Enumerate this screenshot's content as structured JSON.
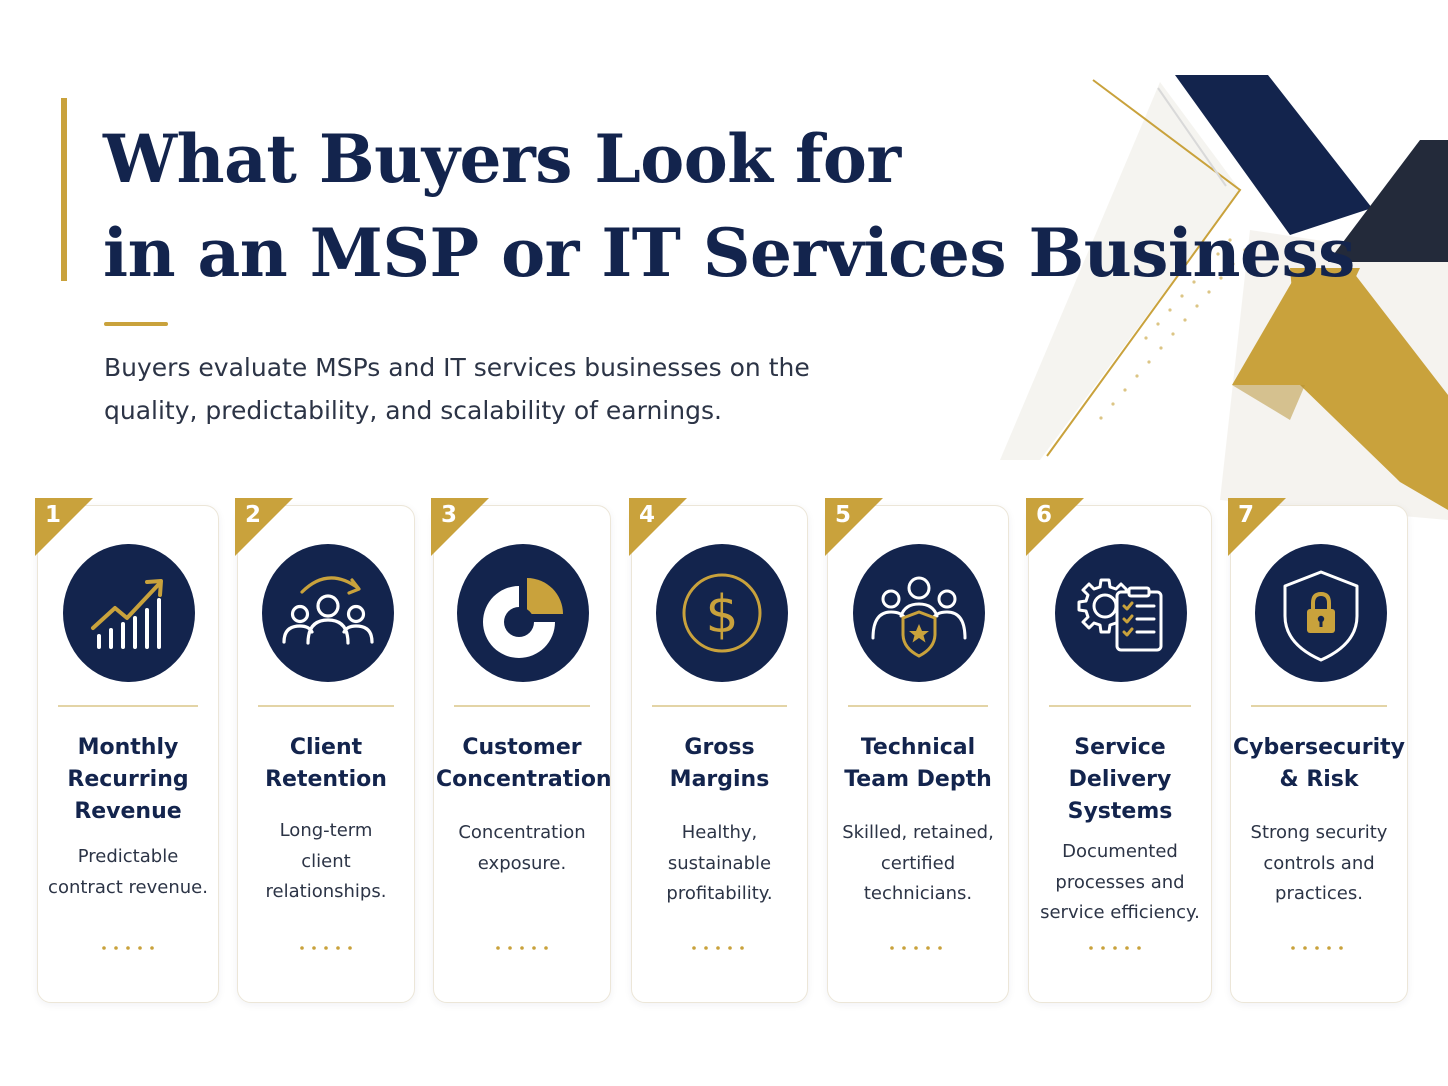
{
  "header": {
    "title_lines": [
      "What Buyers Look for",
      "in an MSP or IT Services Business"
    ],
    "subtitle_lines": [
      "Buyers evaluate MSPs and IT services businesses on the",
      "quality, predictability, and scalability of earnings."
    ]
  },
  "colors": {
    "navy": "#13244d",
    "gold": "#c9a23c",
    "text": "#2c3446"
  },
  "cards": [
    {
      "number": "1",
      "icon": "growth-chart-icon",
      "title_lines": [
        "Monthly",
        "Recurring",
        "Revenue"
      ],
      "desc_lines": [
        "Predictable",
        "contract revenue."
      ]
    },
    {
      "number": "2",
      "icon": "client-group-icon",
      "title_lines": [
        "Client",
        "Retention"
      ],
      "desc_lines": [
        "Long-term",
        "client",
        "relationships."
      ]
    },
    {
      "number": "3",
      "icon": "pie-chart-icon",
      "title_lines": [
        "Customer",
        "Concentration"
      ],
      "desc_lines": [
        "Concentration",
        "exposure."
      ]
    },
    {
      "number": "4",
      "icon": "dollar-icon",
      "title_lines": [
        "Gross",
        "Margins"
      ],
      "desc_lines": [
        "Healthy,",
        "sustainable",
        "profitability."
      ]
    },
    {
      "number": "5",
      "icon": "team-shield-icon",
      "title_lines": [
        "Technical",
        "Team Depth"
      ],
      "desc_lines": [
        "Skilled, retained,",
        "certified",
        "technicians."
      ]
    },
    {
      "number": "6",
      "icon": "gear-checklist-icon",
      "title_lines": [
        "Service",
        "Delivery",
        "Systems"
      ],
      "desc_lines": [
        "Documented",
        "processes and",
        "service efficiency."
      ]
    },
    {
      "number": "7",
      "icon": "security-shield-icon",
      "title_lines": [
        "Cybersecurity",
        "& Risk"
      ],
      "desc_lines": [
        "Strong security",
        "controls and",
        "practices."
      ]
    }
  ]
}
